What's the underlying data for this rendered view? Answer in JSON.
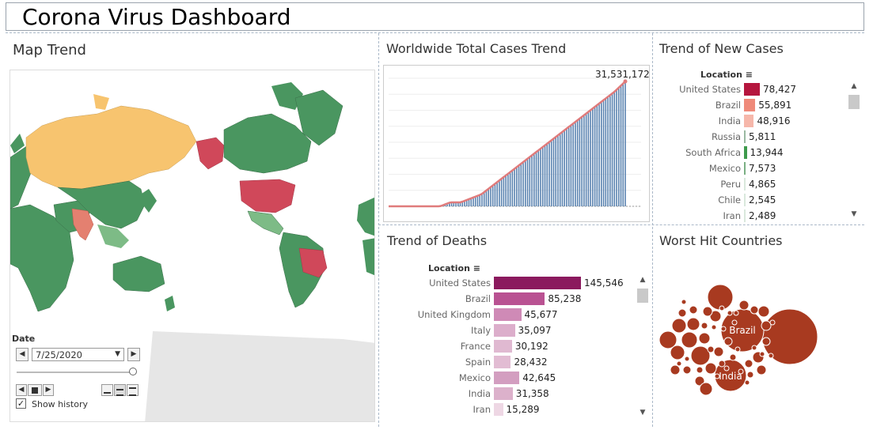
{
  "dashboard": {
    "title": "Corona Virus Dashboard"
  },
  "map_panel": {
    "title": "Map Trend",
    "date_label": "Date",
    "date_value": "7/25/2020",
    "show_history_label": "Show history",
    "show_history_checked": true,
    "colors": {
      "ocean": "#ffffff",
      "land_green": "#4a9660",
      "land_green_light": "#7dbb86",
      "land_orange": "#f7c46f",
      "land_red": "#d0485a",
      "land_lightred": "#e48070",
      "grey_land": "#e6e6e6"
    }
  },
  "worldwide": {
    "title": "Worldwide Total Cases Trend",
    "last_value_label": "31,531,172",
    "chart_data": {
      "type": "area",
      "series": [
        {
          "values": [
            0,
            0,
            0,
            0,
            0,
            0,
            1,
            1,
            2,
            3,
            5,
            7,
            9,
            11,
            13,
            15,
            17,
            19,
            21,
            23,
            25,
            27,
            29,
            31.5
          ]
        }
      ],
      "bar_color": "#5b84b1",
      "line_color": "#e07b7b"
    }
  },
  "new_cases": {
    "title": "Trend of New Cases",
    "location_header": "Location",
    "chart_data": {
      "type": "bar",
      "categories": [
        "United States",
        "Brazil",
        "India",
        "Russia",
        "South Africa",
        "Mexico",
        "Peru",
        "Chile",
        "Iran"
      ],
      "values": [
        78427,
        55891,
        48916,
        5811,
        13944,
        7573,
        4865,
        2545,
        2489
      ],
      "labels": [
        "78,427",
        "55,891",
        "48,916",
        "5,811",
        "13,944",
        "7,573",
        "4,865",
        "2,545",
        "2,489"
      ],
      "colors": [
        "#b5163e",
        "#ef8a7a",
        "#f6b7aa",
        "#9ab9a1",
        "#3e9a4c",
        "#7aaf83",
        "#d9e8dc",
        "#d9e8dc",
        "#d9e8dc"
      ]
    }
  },
  "deaths": {
    "title": "Trend of Deaths",
    "location_header": "Location",
    "chart_data": {
      "type": "bar",
      "categories": [
        "United States",
        "Brazil",
        "United Kingdom",
        "Italy",
        "France",
        "Spain",
        "Mexico",
        "India",
        "Iran"
      ],
      "values": [
        145546,
        85238,
        45677,
        35097,
        30192,
        28432,
        42645,
        31358,
        15289
      ],
      "labels": [
        "145,546",
        "85,238",
        "45,677",
        "35,097",
        "30,192",
        "28,432",
        "42,645",
        "31,358",
        "15,289"
      ],
      "colors": [
        "#8b1a5e",
        "#b95292",
        "#cf8ab6",
        "#dcaecb",
        "#e0b9d1",
        "#e2bcd3",
        "#d39ec0",
        "#dcb1cb",
        "#eed7e4"
      ]
    }
  },
  "worst_hit": {
    "title": "Worst Hit Countries",
    "labels": [
      "Brazil",
      "India"
    ],
    "bubble_color": "#a83a20"
  }
}
